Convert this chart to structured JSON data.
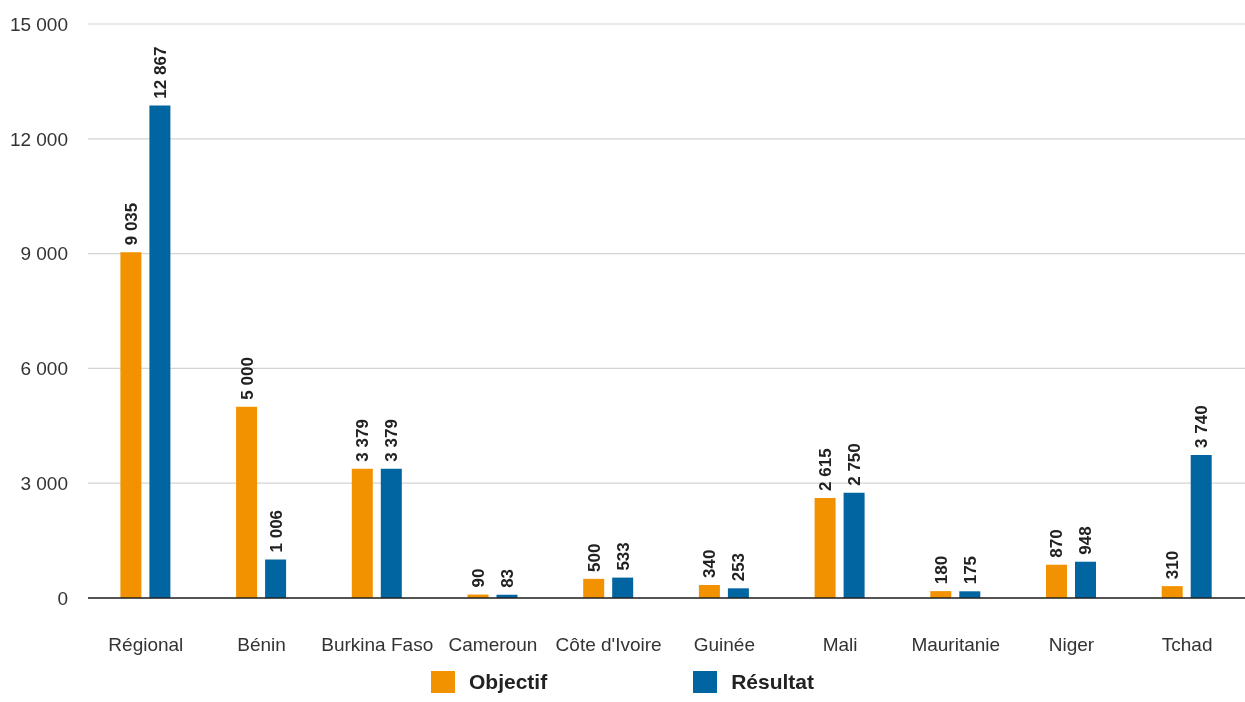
{
  "chart_data": {
    "type": "bar",
    "categories": [
      "Régional",
      "Bénin",
      "Burkina Faso",
      "Cameroun",
      "Côte d'Ivoire",
      "Guinée",
      "Mali",
      "Mauritanie",
      "Niger",
      "Tchad"
    ],
    "series": [
      {
        "name": "Objectif",
        "color": "#f39200",
        "values": [
          9035,
          5000,
          3379,
          90,
          500,
          340,
          2615,
          180,
          870,
          310
        ],
        "value_labels": [
          "9 035",
          "5 000",
          "3 379",
          "90",
          "500",
          "340",
          "2 615",
          "180",
          "870",
          "310"
        ]
      },
      {
        "name": "Résultat",
        "color": "#0065a1",
        "values": [
          12867,
          1006,
          3379,
          83,
          533,
          253,
          2750,
          175,
          948,
          3740
        ],
        "value_labels": [
          "12 867",
          "1 006",
          "3 379",
          "83",
          "533",
          "253",
          "2 750",
          "175",
          "948",
          "3 740"
        ]
      }
    ],
    "ylim": [
      0,
      15000
    ],
    "yticks": [
      {
        "value": 0,
        "label": "0"
      },
      {
        "value": 3000,
        "label": "3 000"
      },
      {
        "value": 6000,
        "label": "6 000"
      },
      {
        "value": 9000,
        "label": "9 000"
      },
      {
        "value": 12000,
        "label": "12 000"
      },
      {
        "value": 15000,
        "label": "15 000"
      }
    ],
    "grid": "y",
    "legend": "bottom"
  }
}
